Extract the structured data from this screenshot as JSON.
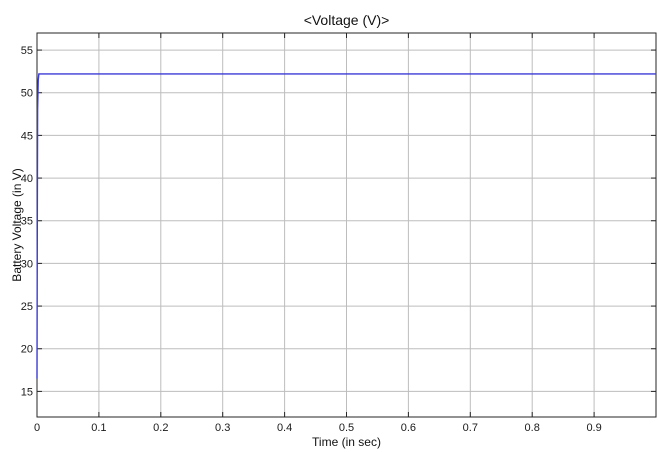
{
  "chart_data": {
    "type": "line",
    "title": "<Voltage (V)>",
    "xlabel": "Time (in sec)",
    "ylabel": "Battery Voltage (in V)",
    "xlim": [
      0,
      1
    ],
    "ylim": [
      12,
      57
    ],
    "xticks": [
      0,
      0.1,
      0.2,
      0.3,
      0.4,
      0.5,
      0.6,
      0.7,
      0.8,
      0.9
    ],
    "xtick_labels": [
      "0",
      "0.1",
      "0.2",
      "0.3",
      "0.4",
      "0.5",
      "0.6",
      "0.7",
      "0.8",
      "0.9"
    ],
    "yticks": [
      15,
      20,
      25,
      30,
      35,
      40,
      45,
      50,
      55
    ],
    "ytick_labels": [
      "15",
      "20",
      "25",
      "30",
      "35",
      "40",
      "45",
      "50",
      "55"
    ],
    "grid": true,
    "legend": false,
    "series": [
      {
        "color": "#3b3bd6",
        "x": [
          0,
          0.0005,
          0.001,
          0.002,
          0.003,
          0.1,
          0.2,
          0.3,
          0.4,
          0.5,
          0.6,
          0.7,
          0.8,
          0.9,
          1.0
        ],
        "y": [
          16.5,
          35,
          48,
          51.5,
          52.2,
          52.2,
          52.2,
          52.2,
          52.2,
          52.2,
          52.2,
          52.2,
          52.2,
          52.2,
          52.2
        ]
      }
    ]
  }
}
